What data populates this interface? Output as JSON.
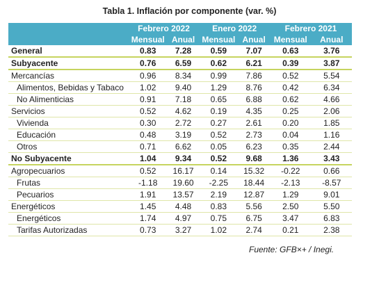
{
  "title": "Tabla 1. Inflación por componente (var. %)",
  "table": {
    "groups": [
      "Febrero 2022",
      "Enero 2022",
      "Febrero 2021"
    ],
    "subheaders": [
      "Mensual",
      "Anual",
      "Mensual",
      "Anual",
      "Mensual",
      "Anual"
    ],
    "rows": [
      [
        "General",
        "0.83",
        "7.28",
        "0.59",
        "7.07",
        "0.63",
        "3.76"
      ],
      [
        "Subyacente",
        "0.76",
        "6.59",
        "0.62",
        "6.21",
        "0.39",
        "3.87"
      ],
      [
        "Mercancías",
        "0.96",
        "8.34",
        "0.99",
        "7.86",
        "0.52",
        "5.54"
      ],
      [
        "Alimentos, Bebidas y Tabaco",
        "1.02",
        "9.40",
        "1.29",
        "8.76",
        "0.42",
        "6.34"
      ],
      [
        "No Alimenticias",
        "0.91",
        "7.18",
        "0.65",
        "6.88",
        "0.62",
        "4.66"
      ],
      [
        "Servicios",
        "0.52",
        "4.62",
        "0.19",
        "4.35",
        "0.25",
        "2.06"
      ],
      [
        "Vivienda",
        "0.30",
        "2.72",
        "0.27",
        "2.61",
        "0.20",
        "1.85"
      ],
      [
        "Educación",
        "0.48",
        "3.19",
        "0.52",
        "2.73",
        "0.04",
        "1.16"
      ],
      [
        "Otros",
        "0.71",
        "6.62",
        "0.05",
        "6.23",
        "0.35",
        "2.44"
      ],
      [
        "No Subyacente",
        "1.04",
        "9.34",
        "0.52",
        "9.68",
        "1.36",
        "3.43"
      ],
      [
        "Agropecuarios",
        "0.52",
        "16.17",
        "0.14",
        "15.32",
        "-0.22",
        "0.66"
      ],
      [
        "Frutas",
        "-1.18",
        "19.60",
        "-2.25",
        "18.44",
        "-2.13",
        "-8.57"
      ],
      [
        "Pecuarios",
        "1.91",
        "13.57",
        "2.19",
        "12.87",
        "1.29",
        "9.01"
      ],
      [
        "Energéticos",
        "1.45",
        "4.48",
        "0.83",
        "5.56",
        "2.50",
        "5.50"
      ],
      [
        "Energéticos",
        "1.74",
        "4.97",
        "0.75",
        "6.75",
        "3.47",
        "6.83"
      ],
      [
        "Tarifas Autorizadas",
        "0.73",
        "3.27",
        "1.02",
        "2.74",
        "0.21",
        "2.38"
      ]
    ]
  },
  "source": "Fuente: GFB×+ /  Inegi."
}
